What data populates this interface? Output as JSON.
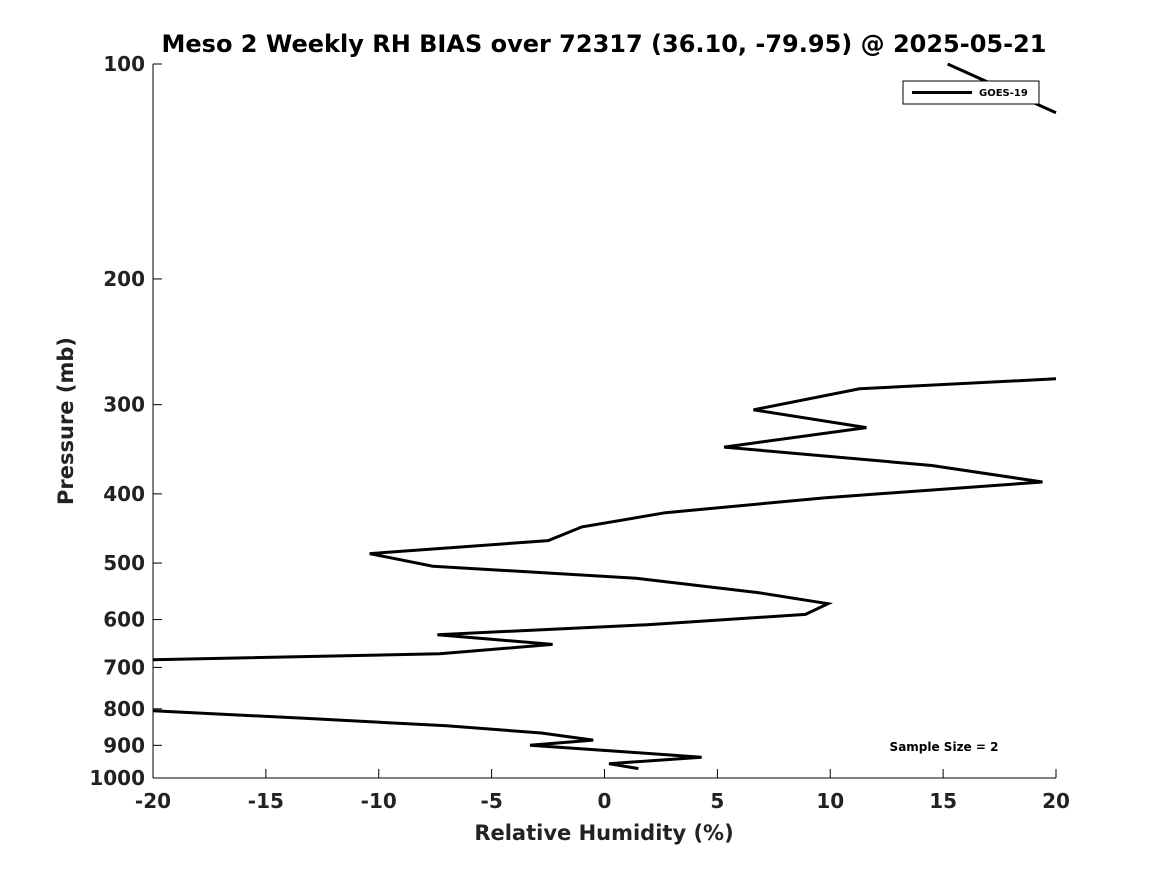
{
  "chart_data": {
    "type": "line",
    "title": "Meso 2 Weekly RH BIAS over 72317 (36.10, -79.95) @ 2025-05-21",
    "xlabel": "Relative Humidity (%)",
    "ylabel": "Pressure (mb)",
    "xlim": [
      -20,
      20
    ],
    "ylim": [
      100,
      1000
    ],
    "y_scale": "log",
    "y_reversed": true,
    "x_ticks": [
      -20,
      -15,
      -10,
      -5,
      0,
      5,
      10,
      15,
      20
    ],
    "x_tick_labels": [
      "-20",
      "-15",
      "-10",
      "-5",
      "0",
      "5",
      "10",
      "15",
      "20"
    ],
    "y_ticks": [
      100,
      200,
      300,
      400,
      500,
      600,
      700,
      800,
      900,
      1000
    ],
    "y_tick_labels": [
      "100",
      "200",
      "300",
      "400",
      "500",
      "600",
      "700",
      "800",
      "900",
      "1000"
    ],
    "grid": false,
    "legend": {
      "position": "top-right",
      "entries": [
        "GOES-19"
      ]
    },
    "annotation": "Sample Size = 2",
    "series": [
      {
        "name": "GOES-19",
        "color": "#000000",
        "segments": [
          [
            {
              "x": 15.2,
              "p": 100
            },
            {
              "x": 20.0,
              "p": 117
            }
          ],
          [
            {
              "x": 20.0,
              "p": 276
            },
            {
              "x": 11.3,
              "p": 285
            },
            {
              "x": 6.6,
              "p": 305
            },
            {
              "x": 11.6,
              "p": 323
            },
            {
              "x": 5.3,
              "p": 344
            },
            {
              "x": 14.5,
              "p": 365
            },
            {
              "x": 19.4,
              "p": 385
            },
            {
              "x": 9.8,
              "p": 405
            },
            {
              "x": 2.7,
              "p": 425
            },
            {
              "x": -1.0,
              "p": 445
            },
            {
              "x": -2.5,
              "p": 465
            },
            {
              "x": -10.4,
              "p": 485
            },
            {
              "x": -7.6,
              "p": 505
            },
            {
              "x": 1.4,
              "p": 525
            },
            {
              "x": 6.8,
              "p": 550
            },
            {
              "x": 9.9,
              "p": 570
            },
            {
              "x": 8.9,
              "p": 590
            },
            {
              "x": 1.9,
              "p": 610
            },
            {
              "x": -7.4,
              "p": 630
            },
            {
              "x": -2.3,
              "p": 650
            },
            {
              "x": -7.3,
              "p": 670
            },
            {
              "x": -20.0,
              "p": 683
            }
          ],
          [
            {
              "x": -20.0,
              "p": 805
            },
            {
              "x": -13.3,
              "p": 825
            },
            {
              "x": -7.0,
              "p": 845
            },
            {
              "x": -2.8,
              "p": 865
            },
            {
              "x": -0.5,
              "p": 885
            },
            {
              "x": -3.3,
              "p": 900
            },
            {
              "x": 1.1,
              "p": 920
            },
            {
              "x": 4.3,
              "p": 935
            },
            {
              "x": 0.2,
              "p": 955
            },
            {
              "x": 1.5,
              "p": 970
            }
          ]
        ]
      }
    ]
  }
}
